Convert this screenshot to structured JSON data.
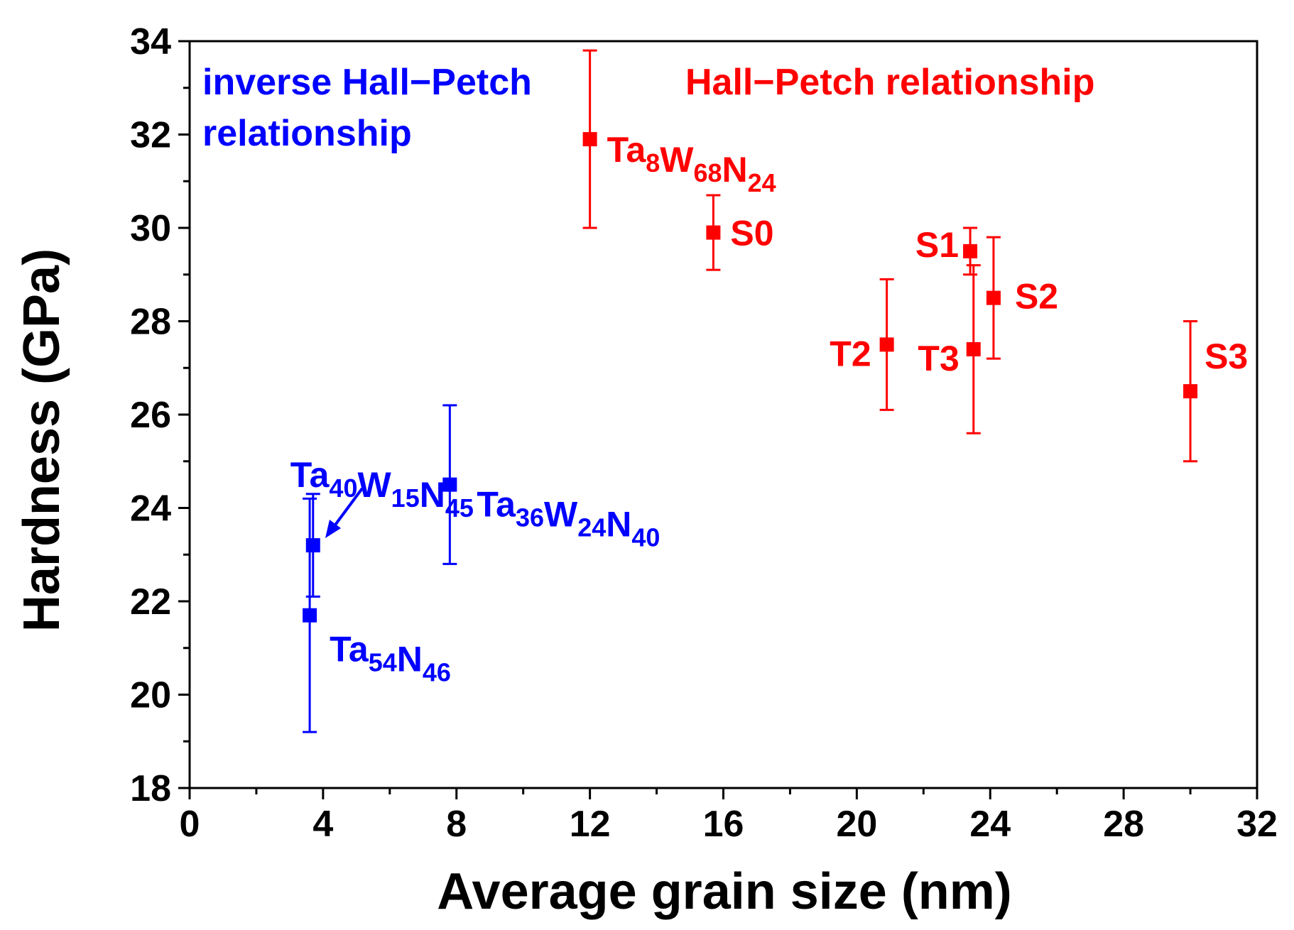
{
  "chart_data": {
    "type": "scatter",
    "xlabel": "Average grain size (nm)",
    "ylabel": "Hardness (GPa)",
    "xlim": [
      0,
      32
    ],
    "ylim": [
      18,
      34
    ],
    "x_ticks": [
      0,
      4,
      8,
      12,
      16,
      20,
      24,
      28,
      32
    ],
    "y_ticks": [
      18,
      20,
      22,
      24,
      26,
      28,
      30,
      32,
      34
    ],
    "grid": false,
    "colors": {
      "inverse": "#0000ff",
      "hall_petch": "#ff0000",
      "axis": "#000000"
    },
    "annotations": {
      "inverse": {
        "line1": "inverse Hall−Petch",
        "line2": "relationship",
        "color": "#0000ff"
      },
      "hall_petch": {
        "text": "Hall−Petch relationship",
        "color": "#ff0000"
      }
    },
    "series": [
      {
        "name": "inverse Hall-Petch",
        "color": "#0000ff",
        "points": [
          {
            "x": 3.6,
            "y": 21.7,
            "err": 2.5,
            "label": {
              "parts": [
                [
                  "Ta",
                  "54"
                ],
                [
                  "N",
                  "46"
                ]
              ]
            }
          },
          {
            "x": 3.7,
            "y": 23.2,
            "err": 1.1,
            "label": {
              "parts": [
                [
                  "Ta",
                  "40"
                ],
                [
                  "W",
                  "15"
                ],
                [
                  "N",
                  "45"
                ]
              ]
            }
          },
          {
            "x": 7.8,
            "y": 24.5,
            "err": 1.7,
            "label": {
              "parts": [
                [
                  "Ta",
                  "36"
                ],
                [
                  "W",
                  "24"
                ],
                [
                  "N",
                  "40"
                ]
              ]
            }
          }
        ]
      },
      {
        "name": "Hall-Petch",
        "color": "#ff0000",
        "points": [
          {
            "x": 12.0,
            "y": 31.9,
            "err": 1.9,
            "label": {
              "parts": [
                [
                  "Ta",
                  "8"
                ],
                [
                  "W",
                  "68"
                ],
                [
                  "N",
                  "24"
                ]
              ]
            }
          },
          {
            "x": 15.7,
            "y": 29.9,
            "err": 0.8,
            "label": {
              "parts": [
                [
                  "S0",
                  ""
                ]
              ]
            }
          },
          {
            "x": 23.4,
            "y": 29.5,
            "err": 0.5,
            "label": {
              "parts": [
                [
                  "S1",
                  ""
                ]
              ]
            }
          },
          {
            "x": 24.1,
            "y": 28.5,
            "err": 1.3,
            "label": {
              "parts": [
                [
                  "S2",
                  ""
                ]
              ]
            }
          },
          {
            "x": 20.9,
            "y": 27.5,
            "err": 1.4,
            "label": {
              "parts": [
                [
                  "T2",
                  ""
                ]
              ]
            }
          },
          {
            "x": 23.5,
            "y": 27.4,
            "err": 1.8,
            "label": {
              "parts": [
                [
                  "T3",
                  ""
                ]
              ]
            }
          },
          {
            "x": 30.0,
            "y": 26.5,
            "err": 1.5,
            "label": {
              "parts": [
                [
                  "S3",
                  ""
                ]
              ]
            }
          }
        ]
      }
    ]
  }
}
